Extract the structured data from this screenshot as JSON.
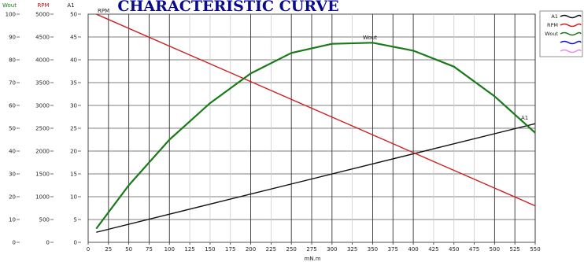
{
  "chart_data": {
    "type": "line",
    "title": "CHARACTERISTIC CURVE",
    "xlabel": "mN.m",
    "xlim": [
      0,
      550
    ],
    "x_ticks": [
      0,
      25,
      50,
      75,
      100,
      125,
      150,
      175,
      200,
      225,
      250,
      275,
      300,
      325,
      350,
      375,
      400,
      425,
      450,
      475,
      500,
      525,
      550
    ],
    "vertical_gridlines": [
      25,
      50,
      75,
      100,
      200,
      250,
      275,
      300,
      350,
      375,
      400,
      500,
      525,
      550
    ],
    "y_axes": [
      {
        "name": "Wout",
        "color": "#1a7a1a",
        "range": [
          0,
          100
        ],
        "ticks": [
          "0",
          "10",
          "20",
          "30",
          "40",
          "50",
          "60",
          "70",
          "80",
          "90",
          "100"
        ]
      },
      {
        "name": "RPM",
        "color": "#cc1111",
        "range": [
          0,
          5000
        ],
        "ticks": [
          "0",
          "500",
          "1000",
          "1500",
          "2000",
          "2500",
          "3000",
          "3500",
          "4000",
          "4500",
          "5000"
        ]
      },
      {
        "name": "A1",
        "color": "#111111",
        "range": [
          0,
          50
        ],
        "ticks": [
          "0",
          "5",
          "10",
          "15",
          "20",
          "25",
          "30",
          "35",
          "40",
          "45",
          "50"
        ]
      }
    ],
    "series": [
      {
        "name": "A1",
        "axis": "A1",
        "color": "#111111",
        "x": [
          10,
          550
        ],
        "y": [
          2.2,
          26
        ]
      },
      {
        "name": "RPM",
        "axis": "RPM",
        "color": "#cc2222",
        "x": [
          10,
          550
        ],
        "y": [
          5000,
          800
        ]
      },
      {
        "name": "Wout",
        "axis": "Wout",
        "color": "#1a7a1a",
        "x": [
          10,
          50,
          100,
          150,
          200,
          250,
          300,
          350,
          400,
          450,
          500,
          550
        ],
        "y": [
          6,
          25,
          45,
          61,
          74,
          83,
          87,
          87.5,
          84,
          77,
          64,
          48
        ]
      },
      {
        "name": "",
        "axis": "A1",
        "color": "#1111cc",
        "x": [],
        "y": []
      },
      {
        "name": "",
        "axis": "A1",
        "color": "#ee88ee",
        "x": [],
        "y": []
      }
    ],
    "annotations": [
      "RPM",
      "Wout",
      "A1"
    ],
    "legend": {
      "position": "right",
      "entries": [
        "A1",
        "RPM",
        "Wout",
        "",
        ""
      ]
    },
    "grid": true
  }
}
